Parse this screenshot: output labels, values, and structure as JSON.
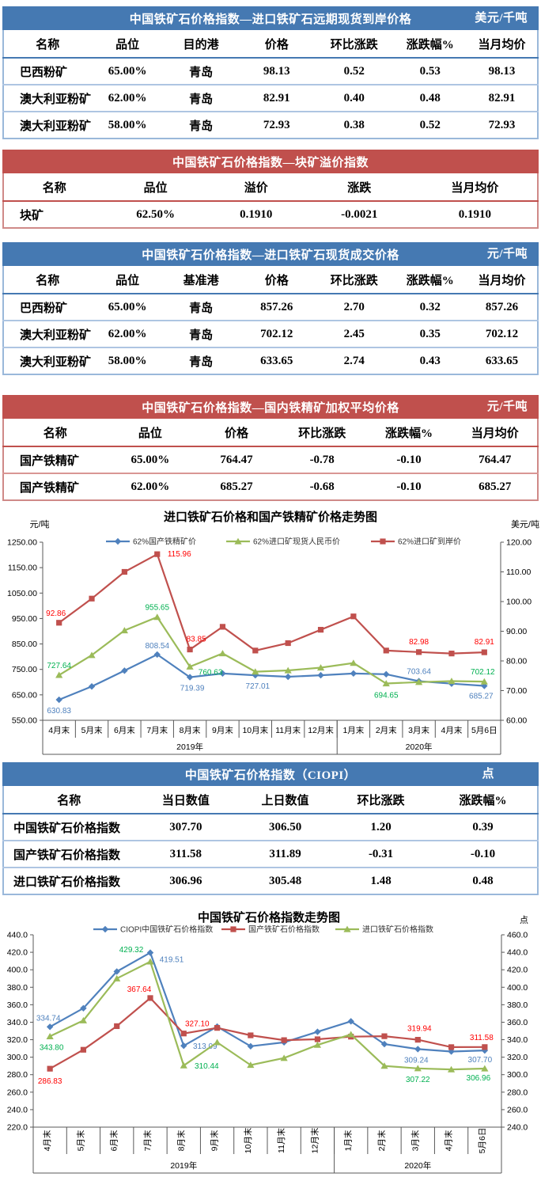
{
  "colors": {
    "blue_header": "#4579b2",
    "red_header": "#c0504d",
    "series_blue": "#4f81bd",
    "series_red": "#c0504d",
    "series_green": "#9bbb59",
    "label_blue": "#4f81bd",
    "label_red": "#ff0000",
    "label_green": "#00b050"
  },
  "table1": {
    "title": "中国铁矿石价格指数—进口铁矿石远期现货到岸价格",
    "unit": "美元/千吨",
    "columns": [
      "名称",
      "品位",
      "目的港",
      "价格",
      "环比涨跌",
      "涨跌幅%",
      "当月均价"
    ],
    "rows": [
      [
        "巴西粉矿",
        "65.00%",
        "青岛",
        "98.13",
        "0.52",
        "0.53",
        "98.13"
      ],
      [
        "澳大利亚粉矿",
        "62.00%",
        "青岛",
        "82.91",
        "0.40",
        "0.48",
        "82.91"
      ],
      [
        "澳大利亚粉矿",
        "58.00%",
        "青岛",
        "72.93",
        "0.38",
        "0.52",
        "72.93"
      ]
    ]
  },
  "table2": {
    "title": "中国铁矿石价格指数—块矿溢价指数",
    "unit": "",
    "columns": [
      "名称",
      "品位",
      "溢价",
      "涨跌",
      "当月均价"
    ],
    "rows": [
      [
        "块矿",
        "62.50%",
        "0.1910",
        "-0.0021",
        "0.1910"
      ]
    ]
  },
  "table3": {
    "title": "中国铁矿石价格指数—进口铁矿石现货成交价格",
    "unit": "元/千吨",
    "columns": [
      "名称",
      "品位",
      "基准港",
      "价格",
      "环比涨跌",
      "涨跌幅%",
      "当月均价"
    ],
    "rows": [
      [
        "巴西粉矿",
        "65.00%",
        "青岛",
        "857.26",
        "2.70",
        "0.32",
        "857.26"
      ],
      [
        "澳大利亚粉矿",
        "62.00%",
        "青岛",
        "702.12",
        "2.45",
        "0.35",
        "702.12"
      ],
      [
        "澳大利亚粉矿",
        "58.00%",
        "青岛",
        "633.65",
        "2.74",
        "0.43",
        "633.65"
      ]
    ]
  },
  "table4": {
    "title": "中国铁矿石价格指数—国内铁精矿加权平均价格",
    "unit": "元/千吨",
    "columns": [
      "名称",
      "品位",
      "价格",
      "环比涨跌",
      "涨跌幅%",
      "当月均价"
    ],
    "rows": [
      [
        "国产铁精矿",
        "65.00%",
        "764.47",
        "-0.78",
        "-0.10",
        "764.47"
      ],
      [
        "国产铁精矿",
        "62.00%",
        "685.27",
        "-0.68",
        "-0.10",
        "685.27"
      ]
    ]
  },
  "table5": {
    "title": "中国铁矿石价格指数（CIOPI）",
    "unit": "点",
    "columns": [
      "名称",
      "当日数值",
      "上日数值",
      "环比涨跌",
      "涨跌幅%"
    ],
    "rows": [
      [
        "中国铁矿石价格指数",
        "307.70",
        "306.50",
        "1.20",
        "0.39"
      ],
      [
        "国产铁矿石价格指数",
        "311.58",
        "311.89",
        "-0.31",
        "-0.10"
      ],
      [
        "进口铁矿石价格指数",
        "306.96",
        "305.48",
        "1.48",
        "0.48"
      ]
    ]
  },
  "chart_data": [
    {
      "type": "line",
      "title": "进口铁矿石价格和国产铁精矿价格走势图",
      "left_axis": {
        "label": "元/吨",
        "min": 550,
        "max": 1250,
        "step": 100,
        "decimals": 2
      },
      "right_axis": {
        "label": "美元/吨",
        "min": 60,
        "max": 120,
        "step": 10,
        "decimals": 2
      },
      "categories": [
        "4月末",
        "5月末",
        "6月末",
        "7月末",
        "8月末",
        "9月末",
        "10月末",
        "11月末",
        "12月末",
        "1月末",
        "2月末",
        "3月末",
        "4月末",
        "5月6日"
      ],
      "year_groups": [
        {
          "label": "2019年",
          "count": 9
        },
        {
          "label": "2020年",
          "count": 5
        }
      ],
      "grid": false,
      "legend_position": "top",
      "series": [
        {
          "name": "62%国产铁精矿价",
          "axis": "left",
          "color": "#4f81bd",
          "label_color": "#4f81bd",
          "marker": "diamond",
          "values": [
            630.83,
            683,
            745,
            808.54,
            719.39,
            734,
            727.01,
            721,
            727,
            734,
            731,
            703.64,
            694,
            685.27
          ],
          "point_labels": [
            {
              "i": 0,
              "text": "630.83",
              "dx": 0,
              "dy": 17
            },
            {
              "i": 3,
              "text": "808.54",
              "dx": 0,
              "dy": -8
            },
            {
              "i": 4,
              "text": "719.39",
              "dx": 3,
              "dy": 17
            },
            {
              "i": 6,
              "text": "727.01",
              "dx": 3,
              "dy": 17
            },
            {
              "i": 11,
              "text": "703.64",
              "dx": 0,
              "dy": -9
            },
            {
              "i": 13,
              "text": "685.27",
              "dx": -4,
              "dy": 16
            }
          ]
        },
        {
          "name": "62%进口矿现货人民币价",
          "axis": "left",
          "color": "#9bbb59",
          "label_color": "#00b050",
          "marker": "triangle",
          "values": [
            727.64,
            806,
            903,
            955.65,
            760.63,
            813,
            741,
            746,
            757,
            775,
            694.65,
            700,
            704,
            702.12
          ],
          "point_labels": [
            {
              "i": 0,
              "text": "727.64",
              "dx": 0,
              "dy": -9
            },
            {
              "i": 3,
              "text": "955.65",
              "dx": 0,
              "dy": -9
            },
            {
              "i": 4,
              "text": "760.63",
              "dx": 26,
              "dy": 10
            },
            {
              "i": 10,
              "text": "694.65",
              "dx": 0,
              "dy": 18
            },
            {
              "i": 13,
              "text": "702.12",
              "dx": -2,
              "dy": -9
            }
          ]
        },
        {
          "name": "62%进口矿到岸价",
          "axis": "right",
          "color": "#c0504d",
          "label_color": "#ff0000",
          "marker": "square",
          "values": [
            92.86,
            101,
            110,
            115.96,
            83.85,
            91.5,
            83.5,
            86,
            90.5,
            95,
            83.5,
            82.98,
            82.5,
            82.91
          ],
          "point_labels": [
            {
              "i": 0,
              "text": "92.86",
              "dx": -4,
              "dy": -9
            },
            {
              "i": 3,
              "text": "115.96",
              "dx": 28,
              "dy": 3
            },
            {
              "i": 4,
              "text": "83.85",
              "dx": 8,
              "dy": -10
            },
            {
              "i": 11,
              "text": "82.98",
              "dx": 0,
              "dy": -10
            },
            {
              "i": 13,
              "text": "82.91",
              "dx": 0,
              "dy": -10
            }
          ]
        }
      ]
    },
    {
      "type": "line",
      "title": "中国铁矿石价格指数走势图",
      "left_axis": {
        "label": "",
        "min": 220,
        "max": 440,
        "step": 20,
        "decimals": 1
      },
      "right_axis": {
        "label": "点",
        "min": 240,
        "max": 460,
        "step": 20,
        "decimals": 1
      },
      "categories": [
        "4月末",
        "5月末",
        "6月末",
        "7月末",
        "8月末",
        "9月末",
        "10月末",
        "11月末",
        "12月末",
        "1月末",
        "2月末",
        "3月末",
        "4月末",
        "5月6日"
      ],
      "year_groups": [
        {
          "label": "2019年",
          "count": 9
        },
        {
          "label": "2020年",
          "count": 5
        }
      ],
      "grid": false,
      "legend_position": "top",
      "series": [
        {
          "name": "CIOPI中国铁矿石价格指数",
          "axis": "left",
          "color": "#4f81bd",
          "label_color": "#4f81bd",
          "marker": "diamond",
          "values": [
            334.74,
            356,
            398,
            419.51,
            313.09,
            335,
            312.5,
            317,
            329,
            341,
            315,
            309.24,
            306.5,
            307.7
          ],
          "point_labels": [
            {
              "i": 0,
              "text": "334.74",
              "dx": -2,
              "dy": -8
            },
            {
              "i": 3,
              "text": "419.51",
              "dx": 27,
              "dy": 12
            },
            {
              "i": 4,
              "text": "313.09",
              "dx": 27,
              "dy": 4
            },
            {
              "i": 11,
              "text": "309.24",
              "dx": -2,
              "dy": 17
            },
            {
              "i": 13,
              "text": "307.70",
              "dx": -6,
              "dy": 15
            }
          ]
        },
        {
          "name": "国产铁矿石价格指数",
          "axis": "left",
          "color": "#c0504d",
          "label_color": "#ff0000",
          "marker": "square",
          "values": [
            286.83,
            308.5,
            335.5,
            367.64,
            327.1,
            333.5,
            325,
            319.5,
            320.5,
            323.5,
            324,
            319.94,
            311.5,
            311.58
          ],
          "point_labels": [
            {
              "i": 0,
              "text": "286.83",
              "dx": 0,
              "dy": 19
            },
            {
              "i": 3,
              "text": "367.64",
              "dx": -14,
              "dy": -8
            },
            {
              "i": 4,
              "text": "327.10",
              "dx": 17,
              "dy": -9
            },
            {
              "i": 11,
              "text": "319.94",
              "dx": 2,
              "dy": -11
            },
            {
              "i": 13,
              "text": "311.58",
              "dx": -4,
              "dy": -9
            }
          ]
        },
        {
          "name": "进口铁矿石价格指数",
          "axis": "right",
          "color": "#9bbb59",
          "label_color": "#00b050",
          "marker": "triangle",
          "values": [
            343.8,
            362,
            410,
            429.32,
            310.44,
            337,
            311,
            319,
            334,
            346,
            310,
            307.22,
            306,
            306.96
          ],
          "point_labels": [
            {
              "i": 0,
              "text": "343.80",
              "dx": 2,
              "dy": 17
            },
            {
              "i": 3,
              "text": "429.32",
              "dx": -24,
              "dy": -12
            },
            {
              "i": 4,
              "text": "310.44",
              "dx": 29,
              "dy": 4
            },
            {
              "i": 11,
              "text": "307.22",
              "dx": 0,
              "dy": 17
            },
            {
              "i": 13,
              "text": "306.96",
              "dx": -8,
              "dy": 15
            }
          ]
        }
      ]
    }
  ]
}
